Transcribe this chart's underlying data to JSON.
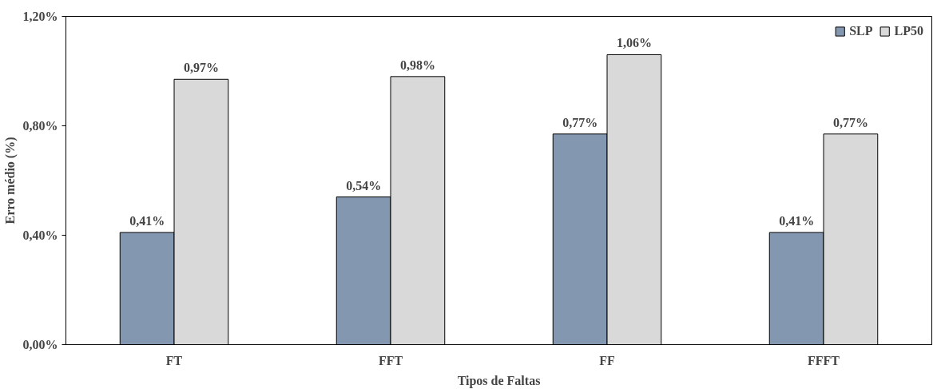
{
  "chart_data": {
    "type": "bar",
    "xlabel": "Tipos de Faltas",
    "ylabel": "Erro médio (%)",
    "categories": [
      "FT",
      "FFT",
      "FF",
      "FFFT"
    ],
    "series": [
      {
        "name": "SLP",
        "color": "#8497b0",
        "values": [
          0.41,
          0.54,
          0.77,
          0.41
        ],
        "value_labels": [
          "0,41%",
          "0,54%",
          "0,77%",
          "0,41%"
        ]
      },
      {
        "name": "LP50",
        "color": "#d9d9d9",
        "values": [
          0.97,
          0.98,
          1.06,
          0.77
        ],
        "value_labels": [
          "0,97%",
          "0,98%",
          "1,06%",
          "0,77%"
        ]
      }
    ],
    "ylim": [
      0,
      1.2
    ],
    "yticks": [
      {
        "value": 0,
        "label": "0,00%"
      },
      {
        "value": 0.4,
        "label": "0,40%"
      },
      {
        "value": 0.8,
        "label": "0,80%"
      },
      {
        "value": 1.2,
        "label": "1,20%"
      }
    ],
    "grid": false,
    "legend": "top right"
  }
}
